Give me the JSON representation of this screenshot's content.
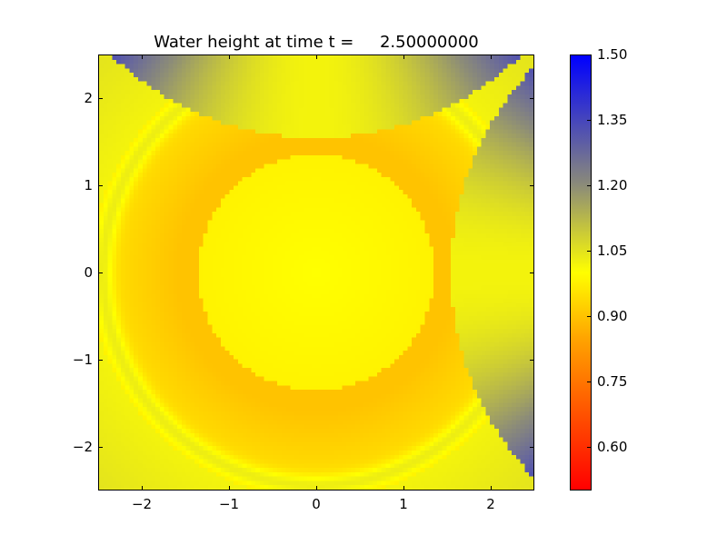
{
  "chart_data": {
    "type": "heatmap",
    "title": "Water height at time t =     2.50000000",
    "xlim": [
      -2.5,
      2.5
    ],
    "ylim": [
      -2.5,
      2.5
    ],
    "xticks": [
      -2,
      -1,
      0,
      1,
      2
    ],
    "yticks": [
      -2,
      -1,
      0,
      1,
      2
    ],
    "xtick_labels": [
      "−2",
      "−1",
      "0",
      "1",
      "2"
    ],
    "ytick_labels": [
      "−2",
      "−1",
      "0",
      "1",
      "2"
    ],
    "grid": false,
    "colorbar": {
      "clim": [
        0.5,
        1.5
      ],
      "ticks": [
        0.6,
        0.75,
        0.9,
        1.05,
        1.2,
        1.35,
        1.5
      ],
      "tick_labels": [
        "0.60",
        "0.75",
        "0.90",
        "1.05",
        "1.20",
        "1.35",
        "1.50"
      ],
      "colormap": [
        {
          "value": 0.5,
          "color": "#ff0000"
        },
        {
          "value": 0.85,
          "color": "#ffa500"
        },
        {
          "value": 1.0,
          "color": "#ffff00"
        },
        {
          "value": 1.2,
          "color": "#8c8c78"
        },
        {
          "value": 1.5,
          "color": "#0000ff"
        }
      ]
    }
  }
}
